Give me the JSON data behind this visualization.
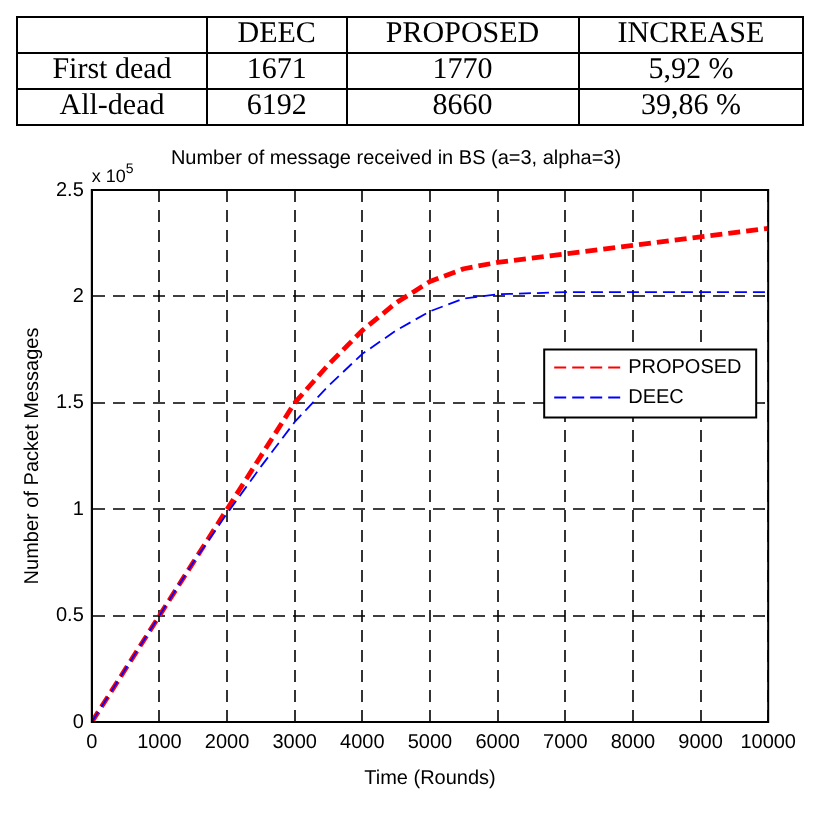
{
  "chart_data": [
    {
      "type": "other",
      "categories": [
        "DEEC",
        "PROPOSED",
        "INCREASE"
      ],
      "y_categories": [
        "First dead",
        "All-dead"
      ],
      "cell_labels": [
        [
          "1671",
          "1770",
          "5,92 %"
        ],
        [
          "6192",
          "8660",
          "39,86 %"
        ]
      ]
    },
    {
      "type": "line",
      "title": "Number of message received in BS (a=3, alpha=3)",
      "xlabel": "Time (Rounds)",
      "ylabel": "Number of Packet Messages",
      "annotations": [
        "x 10$^{5}$"
      ],
      "x": [
        0,
        500,
        1000,
        1500,
        2000,
        2500,
        3000,
        3500,
        4000,
        4500,
        5000,
        5500,
        6000,
        7000,
        8000,
        9000,
        10000
      ],
      "series": [
        {
          "name": "PROPOSED",
          "color": "#ff0000",
          "line_style": "dashed",
          "values": [
            0,
            0.25,
            0.5,
            0.75,
            1.0,
            1.25,
            1.5,
            1.68,
            1.84,
            1.97,
            2.07,
            2.13,
            2.16,
            2.2,
            2.24,
            2.28,
            2.32
          ]
        },
        {
          "name": "DEEC",
          "color": "#0000ff",
          "line_style": "dashed",
          "values": [
            0,
            0.25,
            0.5,
            0.75,
            0.98,
            1.2,
            1.41,
            1.58,
            1.73,
            1.84,
            1.93,
            1.99,
            2.01,
            2.02,
            2.02,
            2.02,
            2.02
          ]
        }
      ],
      "xlim": [
        0,
        10000
      ],
      "xticks": [
        0,
        1000,
        2000,
        3000,
        4000,
        5000,
        6000,
        7000,
        8000,
        9000,
        10000
      ],
      "ylim": [
        0,
        2.5
      ],
      "yticks": [
        0,
        0.5,
        1,
        1.5,
        2,
        2.5
      ],
      "grid": true,
      "legend": "right"
    }
  ]
}
